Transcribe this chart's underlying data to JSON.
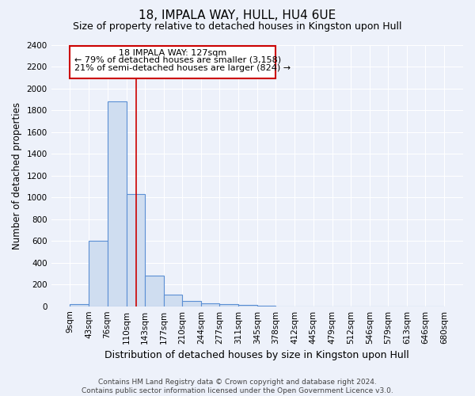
{
  "title1": "18, IMPALA WAY, HULL, HU4 6UE",
  "title2": "Size of property relative to detached houses in Kingston upon Hull",
  "xlabel": "Distribution of detached houses by size in Kingston upon Hull",
  "ylabel": "Number of detached properties",
  "bin_edges": [
    9,
    43,
    76,
    110,
    143,
    177,
    210,
    244,
    277,
    311,
    345,
    378,
    412,
    445,
    479,
    512,
    546,
    579,
    613,
    646,
    680
  ],
  "bar_heights": [
    20,
    600,
    1880,
    1030,
    280,
    110,
    45,
    25,
    20,
    15,
    5,
    0,
    0,
    0,
    0,
    0,
    0,
    0,
    0,
    0
  ],
  "bar_color": "#cfddf0",
  "bar_edge_color": "#5b8fd4",
  "background_color": "#edf1fa",
  "grid_color": "#ffffff",
  "red_line_x": 127,
  "ann_line1": "18 IMPALA WAY: 127sqm",
  "ann_line2": "← 79% of detached houses are smaller (3,158)",
  "ann_line3": "21% of semi-detached houses are larger (824) →",
  "ylim": [
    0,
    2400
  ],
  "yticks": [
    0,
    200,
    400,
    600,
    800,
    1000,
    1200,
    1400,
    1600,
    1800,
    2000,
    2200,
    2400
  ],
  "footnote": "Contains HM Land Registry data © Crown copyright and database right 2024.\nContains public sector information licensed under the Open Government Licence v3.0.",
  "title1_fontsize": 11,
  "title2_fontsize": 9,
  "xlabel_fontsize": 9,
  "ylabel_fontsize": 8.5,
  "tick_fontsize": 7.5,
  "ann_fontsize": 8,
  "footnote_fontsize": 6.5
}
